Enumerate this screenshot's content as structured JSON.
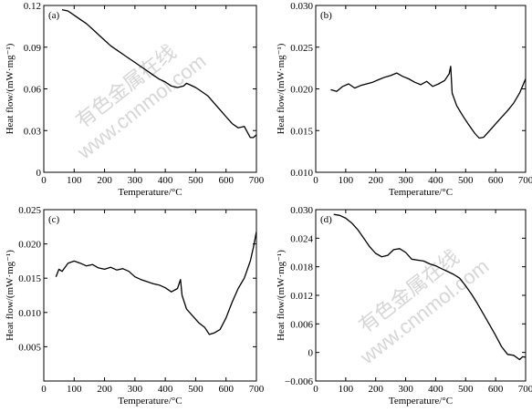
{
  "watermark": {
    "line1": "有色金属在线",
    "line2": "www.cnnmol.com"
  },
  "chart_data": [
    {
      "type": "line",
      "panel": "(a)",
      "xlabel": "Temperature/°C",
      "ylabel": "Heat flow/(mW·mg⁻¹)",
      "xlim": [
        0,
        700
      ],
      "ylim": [
        0,
        0.12
      ],
      "xticks": [
        0,
        100,
        200,
        300,
        400,
        500,
        600,
        700
      ],
      "yticks": [
        0,
        0.03,
        0.06,
        0.09,
        0.12
      ],
      "ytick_labels": [
        "0",
        "0.03",
        "0.06",
        "0.09",
        "0.12"
      ],
      "series": [
        {
          "x": [
            60,
            80,
            100,
            120,
            140,
            160,
            180,
            200,
            220,
            240,
            260,
            280,
            300,
            320,
            340,
            360,
            380,
            400,
            420,
            440,
            460,
            470,
            480,
            500,
            520,
            540,
            560,
            580,
            600,
            620,
            640,
            660,
            670,
            680,
            690,
            700
          ],
          "y": [
            0.117,
            0.116,
            0.113,
            0.11,
            0.107,
            0.103,
            0.099,
            0.095,
            0.091,
            0.088,
            0.085,
            0.082,
            0.079,
            0.076,
            0.073,
            0.07,
            0.067,
            0.065,
            0.062,
            0.061,
            0.062,
            0.064,
            0.063,
            0.061,
            0.058,
            0.055,
            0.05,
            0.045,
            0.04,
            0.035,
            0.032,
            0.033,
            0.029,
            0.025,
            0.025,
            0.027
          ]
        }
      ]
    },
    {
      "type": "line",
      "panel": "(b)",
      "xlabel": "Temperature/°C",
      "ylabel": "Heat flow/(mW·mg⁻¹)",
      "xlim": [
        0,
        700
      ],
      "ylim": [
        0.01,
        0.03
      ],
      "xticks": [
        0,
        100,
        200,
        300,
        400,
        500,
        600,
        700
      ],
      "yticks": [
        0.01,
        0.015,
        0.02,
        0.025,
        0.03
      ],
      "ytick_labels": [
        "0.010",
        "0.015",
        "0.020",
        "0.025",
        "0.030"
      ],
      "series": [
        {
          "x": [
            50,
            70,
            90,
            110,
            130,
            150,
            170,
            190,
            210,
            230,
            250,
            270,
            290,
            310,
            330,
            350,
            370,
            390,
            410,
            430,
            445,
            450,
            455,
            470,
            490,
            510,
            530,
            545,
            560,
            580,
            600,
            620,
            640,
            660,
            680,
            700
          ],
          "y": [
            0.0199,
            0.0197,
            0.0203,
            0.0206,
            0.0201,
            0.0204,
            0.0206,
            0.0208,
            0.0211,
            0.0214,
            0.0216,
            0.0219,
            0.0215,
            0.0212,
            0.0208,
            0.0205,
            0.0209,
            0.0203,
            0.0206,
            0.021,
            0.0218,
            0.0227,
            0.0195,
            0.018,
            0.0168,
            0.0157,
            0.0147,
            0.0141,
            0.0142,
            0.015,
            0.0158,
            0.0166,
            0.0174,
            0.0183,
            0.0195,
            0.0212
          ]
        }
      ]
    },
    {
      "type": "line",
      "panel": "(c)",
      "xlabel": "Temperature/°C",
      "ylabel": "Heat flow/(mW·mg⁻¹)",
      "xlim": [
        0,
        700
      ],
      "ylim": [
        0.0,
        0.025
      ],
      "xticks": [
        0,
        100,
        200,
        300,
        400,
        500,
        600,
        700
      ],
      "yticks": [
        0.005,
        0.01,
        0.015,
        0.02,
        0.025
      ],
      "ytick_labels": [
        "0.005",
        "0.010",
        "0.015",
        "0.020",
        "0.025"
      ],
      "series": [
        {
          "x": [
            40,
            50,
            60,
            80,
            100,
            120,
            140,
            160,
            180,
            200,
            220,
            240,
            260,
            280,
            300,
            320,
            340,
            360,
            380,
            400,
            420,
            440,
            450,
            455,
            470,
            490,
            510,
            530,
            545,
            560,
            580,
            600,
            620,
            640,
            660,
            680,
            690,
            700
          ],
          "y": [
            0.0152,
            0.0163,
            0.016,
            0.0172,
            0.0175,
            0.0172,
            0.0168,
            0.017,
            0.0165,
            0.0163,
            0.0166,
            0.0162,
            0.0164,
            0.016,
            0.0152,
            0.0148,
            0.0145,
            0.0142,
            0.014,
            0.0136,
            0.013,
            0.0135,
            0.0148,
            0.0125,
            0.0105,
            0.0095,
            0.0085,
            0.0078,
            0.0068,
            0.007,
            0.0075,
            0.0092,
            0.0115,
            0.0135,
            0.015,
            0.0175,
            0.0195,
            0.0218
          ]
        }
      ]
    },
    {
      "type": "line",
      "panel": "(d)",
      "xlabel": "Temperature/°C",
      "ylabel": "Heat flow/(mW·mg⁻¹)",
      "xlim": [
        0,
        700
      ],
      "ylim": [
        -0.006,
        0.03
      ],
      "xticks": [
        0,
        100,
        200,
        300,
        400,
        500,
        600,
        700
      ],
      "yticks": [
        -0.006,
        0.0,
        0.006,
        0.012,
        0.018,
        0.024,
        0.03
      ],
      "ytick_labels": [
        "−0.006",
        "0",
        "0.006",
        "0.012",
        "0.018",
        "0.024",
        "0.030"
      ],
      "series": [
        {
          "x": [
            60,
            80,
            100,
            120,
            140,
            160,
            180,
            200,
            220,
            240,
            260,
            280,
            300,
            320,
            340,
            360,
            380,
            400,
            420,
            440,
            460,
            480,
            500,
            520,
            540,
            560,
            580,
            600,
            620,
            640,
            660,
            680,
            690,
            700
          ],
          "y": [
            0.029,
            0.0288,
            0.0282,
            0.0272,
            0.0258,
            0.024,
            0.0222,
            0.0208,
            0.0201,
            0.0204,
            0.0216,
            0.0218,
            0.021,
            0.0196,
            0.0194,
            0.0192,
            0.0186,
            0.0182,
            0.0176,
            0.017,
            0.0164,
            0.0156,
            0.014,
            0.0122,
            0.0102,
            0.008,
            0.0058,
            0.0036,
            0.0012,
            -0.0004,
            -0.0006,
            -0.0015,
            -0.0009,
            -0.001
          ]
        }
      ]
    }
  ]
}
